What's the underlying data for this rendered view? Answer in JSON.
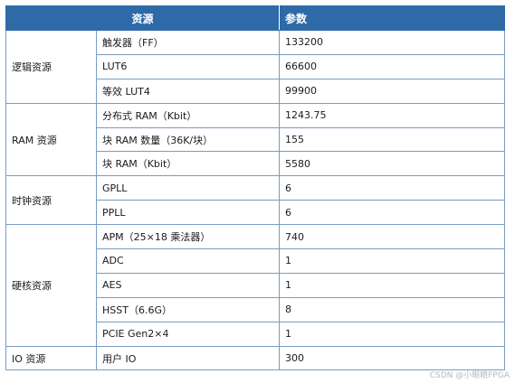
{
  "header": {
    "col_resource": "资源",
    "col_param": "参数"
  },
  "groups": [
    {
      "name": "逻辑资源",
      "rows": [
        {
          "item": "触发器（FF）",
          "value": "133200"
        },
        {
          "item": "LUT6",
          "value": "66600"
        },
        {
          "item": "等效 LUT4",
          "value": "99900"
        }
      ]
    },
    {
      "name": "RAM 资源",
      "rows": [
        {
          "item": "分布式 RAM（Kbit）",
          "value": "1243.75"
        },
        {
          "item": "块 RAM 数量（36K/块）",
          "value": "155"
        },
        {
          "item": "块 RAM（Kbit）",
          "value": "5580"
        }
      ]
    },
    {
      "name": "时钟资源",
      "rows": [
        {
          "item": "GPLL",
          "value": "6"
        },
        {
          "item": "PPLL",
          "value": "6"
        }
      ]
    },
    {
      "name": "硬核资源",
      "rows": [
        {
          "item": "APM（25×18 乘法器）",
          "value": "740"
        },
        {
          "item": "ADC",
          "value": "1"
        },
        {
          "item": "AES",
          "value": "1"
        },
        {
          "item": "HSST（6.6G）",
          "value": "8"
        },
        {
          "item": "PCIE Gen2×4",
          "value": "1"
        }
      ]
    },
    {
      "name": "IO 资源",
      "rows": [
        {
          "item": "用户 IO",
          "value": "300"
        }
      ]
    }
  ],
  "watermark": "CSDN @小眼睛FPGA"
}
